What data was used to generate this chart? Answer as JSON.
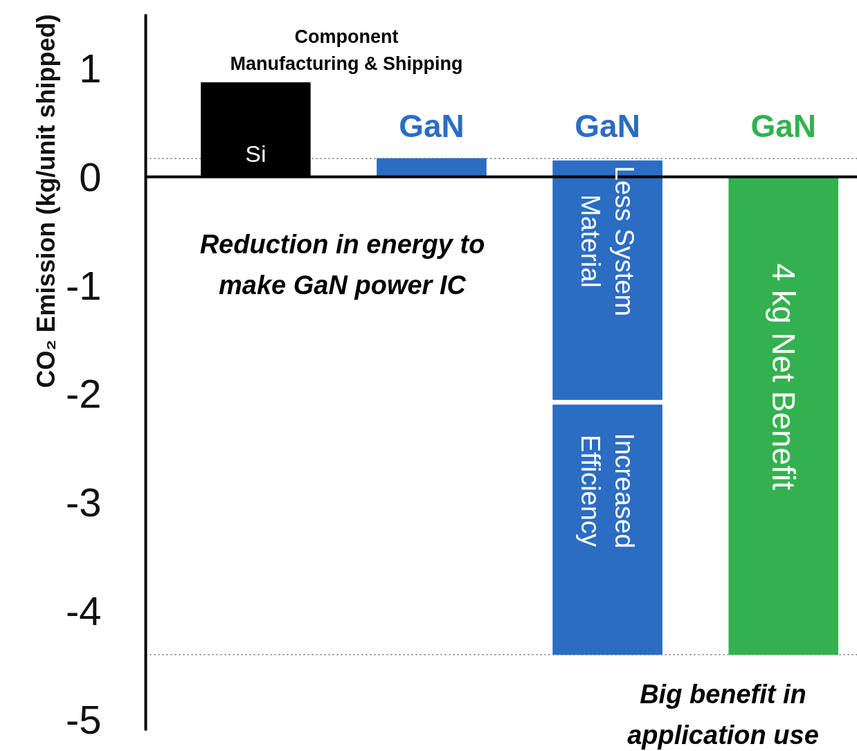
{
  "chart_data": {
    "type": "bar",
    "ylabel": "CO₂ Emission (kg/unit shipped)",
    "categories": [
      null,
      "GaN",
      "GaN",
      "GaN"
    ],
    "series": [
      {
        "name": "Si",
        "color": "#000000",
        "values": [
          0.87,
          null,
          null,
          null
        ]
      },
      {
        "color": "#2b6dc2",
        "values": [
          null,
          0.17,
          null,
          null
        ]
      },
      {
        "name": "Less System\nMaterial",
        "color": "#2b6dc2",
        "values": [
          null,
          null,
          -2.2,
          null
        ],
        "base": [
          null,
          null,
          0.15,
          null
        ]
      },
      {
        "name": "Increased\nEfficiency",
        "color": "#2b6dc2",
        "values": [
          null,
          null,
          -2.3,
          null
        ],
        "base": [
          null,
          null,
          -2.1,
          null
        ]
      },
      {
        "name": "4 kg Net Benefit",
        "color": "#34b14f",
        "values": [
          null,
          null,
          null,
          -4.4
        ],
        "base": [
          null,
          null,
          null,
          0
        ]
      }
    ],
    "ylim": [
      -5.1,
      1.5
    ],
    "yticks": [
      1,
      0,
      -1,
      -2,
      -3,
      -4,
      -5
    ],
    "ref_lines": [
      {
        "axis": "y",
        "value": 0.17,
        "line_style": "dotted",
        "color": "#666666"
      },
      {
        "axis": "y",
        "value": -4.4,
        "line_style": "dotted",
        "color": "#666666"
      }
    ],
    "annotations": [
      "Component\nManufacturing & Shipping",
      "Reduction in energy to\nmake GaN power IC",
      "Big benefit in\napplication use"
    ],
    "grid": false
  }
}
